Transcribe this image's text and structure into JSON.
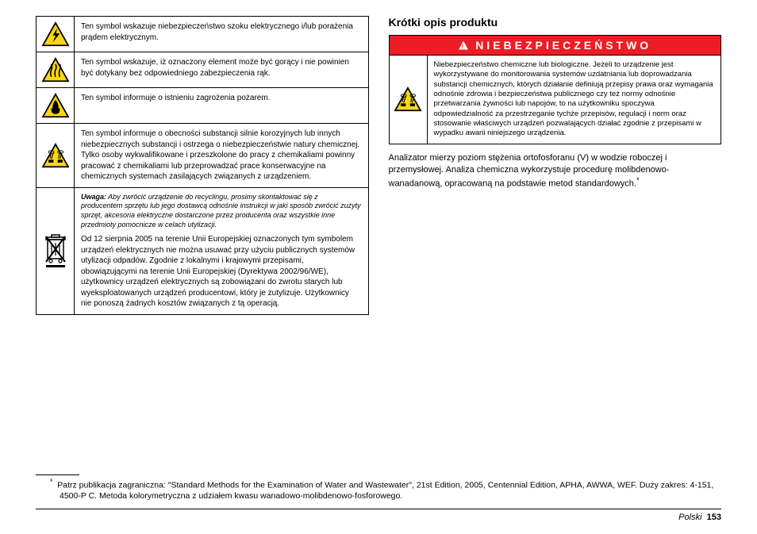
{
  "colors": {
    "danger_bg": "#ee1c25",
    "danger_text": "#ffffff",
    "warn_yellow": "#f9d616",
    "warn_border": "#000000"
  },
  "left_table": [
    {
      "icon": "shock",
      "text": "Ten symbol wskazuje niebezpieczeństwo szoku elektrycznego i/lub porażenia prądem elektrycznym."
    },
    {
      "icon": "hot",
      "text": "Ten symbol wskazuje, iż oznaczony element może być gorący i nie powinien być dotykany bez odpowiedniego zabezpieczenia rąk."
    },
    {
      "icon": "fire",
      "text": "Ten symbol informuje o istnieniu zagrożenia pożarem."
    },
    {
      "icon": "corrosive",
      "text": "Ten symbol informuje o obecności substancji silnie korozyjnych lub innych niebezpiecznych substancji i ostrzega o niebezpieczeństwie natury chemicznej. Tylko osoby wykwalifikowane i przeszkolone do pracy z chemikaliami powinny pracować z chemikaliami lub przeprowadzać prace konserwacyjne na chemicznych systemach zasilających związanych z urządzeniem."
    },
    {
      "icon": "weee",
      "note": "Uwaga:",
      "note_text": " Aby zwrócić urządzenie do recyclingu, prosimy skontaktować się z producentem sprzętu lub jego dostawcą odnośnie instrukcji w jaki sposób zwrócić zużyty sprzęt, akcesoria elektryczne dostarczone przez producenta oraz wszystkie inne przedmioty pomocnicze w celach utylizacji.",
      "text": "Od 12 sierpnia 2005 na terenie Unii Europejskiej oznaczonych tym symbolem urządzeń elektrycznych nie można usuwać przy użyciu publicznych systemów utylizacji odpadów. Zgodnie z lokalnymi i krajowymi przepisami, obowiązującymi na terenie Unii Europejskiej (Dyrektywa 2002/96/WE), użytkownicy urządzeń elektrycznych są zobowiązani do zwrotu starych lub wyeksploatowanych urządzeń producentowi, który je zutylizuje. Użytkownicy nie ponoszą żadnych kosztów związanych z tą operacją."
    }
  ],
  "right": {
    "title": "Krótki opis produktu",
    "danger_label": "NIEBEZPIECZEŃSTWO",
    "danger_text": "Niebezpieczeństwo chemiczne lub biologiczne. Jeżeli to urządzenie jest wykorzystywane do monitorowania systemów uzdatniania lub doprowadzania substancji chemicznych, których działanie definiują przepisy prawa oraz wymagania odnośnie zdrowia i bezpieczeństwa publicznego czy też normy odnośnie przetwarzania żywności lub napojów, to na użytkowniku spoczywa odpowiedzialność za przestrzeganie tychże przepisów, regulacji i norm oraz stosowanie właściwych urządzeń pozwalających działać zgodnie z przepisami w wypadku awarii niniejszego urządzenia.",
    "body": "Analizator mierzy poziom stężenia ortofosforanu (V) w wodzie roboczej i przemysłowej. Analiza chemiczna wykorzystuje procedurę molibdenowo-wanadanową, opracowaną na podstawie metod standardowych."
  },
  "footnote_marker": "*",
  "footnote": "Patrz publikacja zagraniczna: \"Standard Methods for the Examination of Water and Wastewater\", 21st Edition, 2005, Centennial Edition, APHA, AWWA, WEF. Duży zakres: 4-151, 4500-P C. Metoda kolorymetryczna z udziałem kwasu wanadowo-molibdenowo-fosforowego.",
  "footer_lang": "Polski",
  "footer_page": "153"
}
